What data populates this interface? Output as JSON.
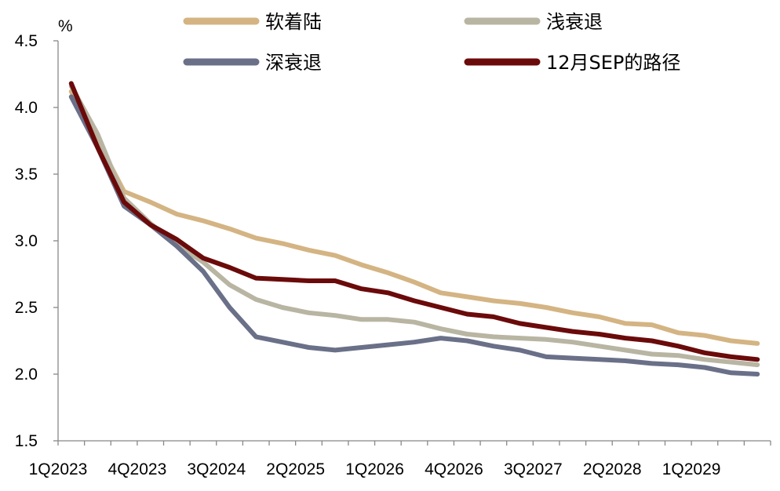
{
  "chart_data": {
    "type": "line",
    "ylabel": "%",
    "ylim": [
      1.5,
      4.5
    ],
    "yticks": [
      "1.5",
      "2.0",
      "2.5",
      "3.0",
      "3.5",
      "4.0",
      "4.5"
    ],
    "xtick_labels": [
      "1Q2023",
      "4Q2023",
      "3Q2024",
      "2Q2025",
      "1Q2026",
      "4Q2026",
      "3Q2027",
      "2Q2028",
      "1Q2029"
    ],
    "x": [
      "1Q2023",
      "2Q2023",
      "3Q2023",
      "4Q2023",
      "1Q2024",
      "2Q2024",
      "3Q2024",
      "4Q2024",
      "1Q2025",
      "2Q2025",
      "3Q2025",
      "4Q2025",
      "1Q2026",
      "2Q2026",
      "3Q2026",
      "4Q2026",
      "1Q2027",
      "2Q2027",
      "3Q2027",
      "4Q2027",
      "1Q2028",
      "2Q2028",
      "3Q2028",
      "4Q2028",
      "1Q2029",
      "2Q2029",
      "3Q2029"
    ],
    "legend_position": "top",
    "series": [
      {
        "name": "软着陆",
        "color": "#D4B483",
        "values": [
          4.12,
          3.75,
          3.37,
          3.29,
          3.2,
          3.15,
          3.09,
          3.02,
          2.98,
          2.93,
          2.89,
          2.82,
          2.76,
          2.69,
          2.61,
          2.58,
          2.55,
          2.53,
          2.5,
          2.46,
          2.43,
          2.38,
          2.37,
          2.31,
          2.29,
          2.25,
          2.23
        ]
      },
      {
        "name": "浅衰退",
        "color": "#B8B5A2",
        "values": [
          4.16,
          3.8,
          3.32,
          3.13,
          2.97,
          2.84,
          2.67,
          2.56,
          2.5,
          2.46,
          2.44,
          2.41,
          2.41,
          2.39,
          2.34,
          2.3,
          2.28,
          2.27,
          2.26,
          2.24,
          2.21,
          2.18,
          2.15,
          2.14,
          2.11,
          2.09,
          2.07
        ]
      },
      {
        "name": "深衰退",
        "color": "#6A7088",
        "values": [
          4.08,
          3.7,
          3.26,
          3.12,
          2.96,
          2.77,
          2.5,
          2.28,
          2.24,
          2.2,
          2.18,
          2.2,
          2.22,
          2.24,
          2.27,
          2.25,
          2.21,
          2.18,
          2.13,
          2.12,
          2.11,
          2.1,
          2.08,
          2.07,
          2.05,
          2.01,
          2.0
        ]
      },
      {
        "name": "12月SEP的路径",
        "color": "#6B0A0A",
        "values": [
          4.18,
          3.7,
          3.29,
          3.12,
          3.01,
          2.87,
          2.8,
          2.72,
          2.71,
          2.7,
          2.7,
          2.64,
          2.61,
          2.55,
          2.5,
          2.45,
          2.43,
          2.38,
          2.35,
          2.32,
          2.3,
          2.27,
          2.25,
          2.21,
          2.16,
          2.13,
          2.11
        ]
      }
    ]
  }
}
